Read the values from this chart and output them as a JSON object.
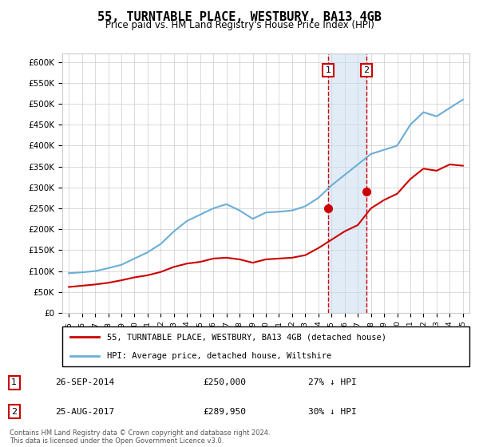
{
  "title": "55, TURNTABLE PLACE, WESTBURY, BA13 4GB",
  "subtitle": "Price paid vs. HM Land Registry's House Price Index (HPI)",
  "legend_line1": "55, TURNTABLE PLACE, WESTBURY, BA13 4GB (detached house)",
  "legend_line2": "HPI: Average price, detached house, Wiltshire",
  "footnote": "Contains HM Land Registry data © Crown copyright and database right 2024.\nThis data is licensed under the Open Government Licence v3.0.",
  "annotation1_label": "1",
  "annotation1_date": "26-SEP-2014",
  "annotation1_price": "£250,000",
  "annotation1_hpi": "27% ↓ HPI",
  "annotation2_label": "2",
  "annotation2_date": "25-AUG-2017",
  "annotation2_price": "£289,950",
  "annotation2_hpi": "30% ↓ HPI",
  "sale1_year": 2014.75,
  "sale1_price": 250000,
  "sale2_year": 2017.65,
  "sale2_price": 289950,
  "hpi_color": "#6baed6",
  "sale_color": "#cc0000",
  "shaded_color": "#c6dbef",
  "annotation_box_color": "#cc0000",
  "ylim_min": 0,
  "ylim_max": 620000,
  "ytick_step": 50000,
  "hpi_years": [
    1995,
    1996,
    1997,
    1998,
    1999,
    2000,
    2001,
    2002,
    2003,
    2004,
    2005,
    2006,
    2007,
    2008,
    2009,
    2010,
    2011,
    2012,
    2013,
    2014,
    2015,
    2016,
    2017,
    2018,
    2019,
    2020,
    2021,
    2022,
    2023,
    2024,
    2025
  ],
  "hpi_values": [
    95000,
    97000,
    100000,
    107000,
    115000,
    130000,
    145000,
    165000,
    195000,
    220000,
    235000,
    250000,
    260000,
    245000,
    225000,
    240000,
    242000,
    245000,
    255000,
    275000,
    305000,
    330000,
    355000,
    380000,
    390000,
    400000,
    450000,
    480000,
    470000,
    490000,
    510000
  ],
  "prop_years": [
    1995,
    1996,
    1997,
    1998,
    1999,
    2000,
    2001,
    2002,
    2003,
    2004,
    2005,
    2006,
    2007,
    2008,
    2009,
    2010,
    2011,
    2012,
    2013,
    2014,
    2015,
    2016,
    2017,
    2018,
    2019,
    2020,
    2021,
    2022,
    2023,
    2024,
    2025
  ],
  "prop_values": [
    62000,
    65000,
    68000,
    72000,
    78000,
    85000,
    90000,
    98000,
    110000,
    118000,
    122000,
    130000,
    132000,
    128000,
    120000,
    128000,
    130000,
    132000,
    138000,
    155000,
    175000,
    195000,
    210000,
    250000,
    270000,
    285000,
    320000,
    345000,
    340000,
    355000,
    352000
  ]
}
